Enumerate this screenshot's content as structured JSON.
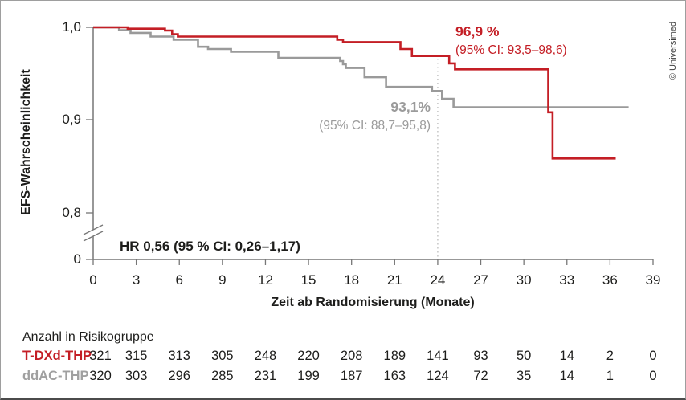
{
  "figure": {
    "copyright": "© Universimed",
    "y_axis": {
      "label": "EFS-Wahrscheinlichkeit",
      "ticks": [
        "1,0",
        "0,9",
        "0,8",
        "0"
      ]
    },
    "x_axis": {
      "label": "Zeit ab Randomisierung (Monate)",
      "ticks": [
        "0",
        "3",
        "6",
        "9",
        "12",
        "15",
        "18",
        "21",
        "24",
        "27",
        "30",
        "33",
        "36",
        "39"
      ]
    },
    "hr_annotation": "HR 0,56 (95 % CI: 0,26–1,17)",
    "annotations": {
      "tdxd": {
        "value": "96,9 %",
        "ci": "(95% CI: 93,5–98,6)"
      },
      "ddac": {
        "value": "93,1%",
        "ci": "(95% CI: 88,7–95,8)"
      }
    },
    "risk_table": {
      "title": "Anzahl in Risikogruppe",
      "rows": [
        {
          "label": "T-DXd-THP",
          "color": "#c41e25",
          "counts": [
            321,
            315,
            313,
            305,
            248,
            220,
            208,
            189,
            141,
            93,
            50,
            14,
            2,
            0
          ]
        },
        {
          "label": "ddAC-THP",
          "color": "#a0a0a0",
          "counts": [
            320,
            303,
            296,
            285,
            231,
            199,
            187,
            163,
            124,
            72,
            35,
            14,
            1,
            0
          ]
        }
      ]
    }
  },
  "chart_data": {
    "type": "line",
    "subtype": "kaplan-meier-step",
    "title": "",
    "xlabel": "Zeit ab Randomisierung (Monate)",
    "ylabel": "EFS-Wahrscheinlichkeit",
    "xlim": [
      0,
      39
    ],
    "x_ticks": [
      0,
      3,
      6,
      9,
      12,
      15,
      18,
      21,
      24,
      27,
      30,
      33,
      36,
      39
    ],
    "y_ticks_shown": [
      1.0,
      0.9,
      0.8,
      0
    ],
    "y_axis_break_between": [
      0.8,
      0
    ],
    "grid": false,
    "landmark_month": 24,
    "landmark_line_style": "dotted-vertical",
    "hazard_ratio": "HR 0,56 (95 % CI: 0,26–1,17)",
    "series": [
      {
        "name": "T-DXd-THP",
        "color": "#c41e25",
        "estimate_at_24m": "96,9 % (95% CI: 93,5–98,6)",
        "steps": [
          [
            0,
            1.0
          ],
          [
            2.4,
            0.9985
          ],
          [
            5.0,
            0.9965
          ],
          [
            5.5,
            0.9925
          ],
          [
            5.9,
            0.99
          ],
          [
            17.0,
            0.9865
          ],
          [
            17.4,
            0.984
          ],
          [
            21.4,
            0.9765
          ],
          [
            22.2,
            0.969
          ],
          [
            24.8,
            0.961
          ],
          [
            25.2,
            0.9545
          ],
          [
            31.7,
            0.908
          ],
          [
            32.0,
            0.858
          ]
        ],
        "end_month": 36.4
      },
      {
        "name": "ddAC-THP",
        "color": "#9a9a9a",
        "estimate_at_24m": "93,1% (95% CI: 88,7–95,8)",
        "steps": [
          [
            0,
            1.0
          ],
          [
            1.8,
            0.997
          ],
          [
            2.6,
            0.994
          ],
          [
            4.0,
            0.99
          ],
          [
            5.6,
            0.9865
          ],
          [
            7.3,
            0.979
          ],
          [
            8.0,
            0.9765
          ],
          [
            9.6,
            0.9735
          ],
          [
            12.9,
            0.967
          ],
          [
            17.2,
            0.9635
          ],
          [
            17.4,
            0.96
          ],
          [
            17.6,
            0.956
          ],
          [
            18.9,
            0.946
          ],
          [
            20.4,
            0.9355
          ],
          [
            23.6,
            0.931
          ],
          [
            24.3,
            0.9225
          ],
          [
            25.1,
            0.9135
          ]
        ],
        "end_month": 37.3
      }
    ]
  }
}
